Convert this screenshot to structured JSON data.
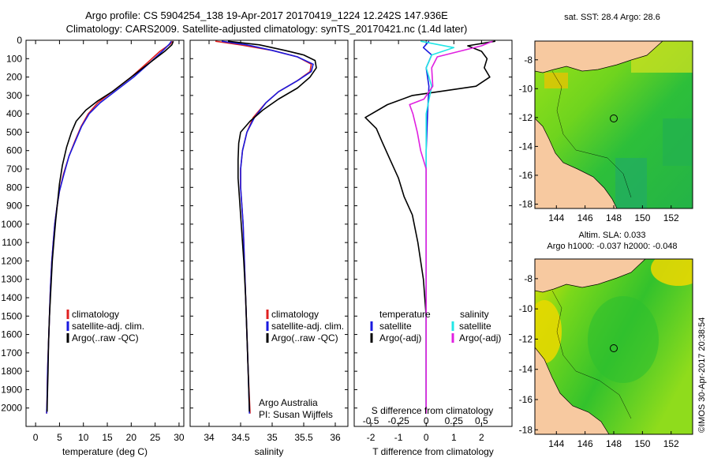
{
  "header": {
    "line1": "Argo profile: CS 5904254_138 19-Apr-2017 20170419_1224 12.242S 147.936E",
    "line2": "Climatology: CARS2009. Satellite-adjusted climatology: synTS_20170421.nc (1.4d later)"
  },
  "colors": {
    "climatology": "#e02020",
    "satellite": "#1a1adf",
    "argo": "#000000",
    "sat_salinity": "#22e6e6",
    "argo_salinity": "#e020e0",
    "land": "#f7c9a0"
  },
  "depth_axis": {
    "ylim": [
      0,
      2100
    ],
    "ticks": [
      "0",
      "100",
      "200",
      "300",
      "400",
      "500",
      "600",
      "700",
      "800",
      "900",
      "1000",
      "1100",
      "1200",
      "1300",
      "1400",
      "1500",
      "1600",
      "1700",
      "1800",
      "1900",
      "2000"
    ]
  },
  "chart_data": [
    {
      "id": "temperature",
      "type": "line",
      "xlabel": "temperature (deg C)",
      "xlim": [
        -2,
        31
      ],
      "xticks": [
        "0",
        "5",
        "10",
        "15",
        "20",
        "25",
        "30"
      ],
      "legend": [
        "climatology",
        "satellite-adj. clim.",
        "Argo(..raw -QC)"
      ],
      "series": [
        {
          "name": "climatology",
          "color": "#e02020",
          "points": [
            [
              28.6,
              5
            ],
            [
              28.2,
              20
            ],
            [
              26,
              60
            ],
            [
              23.5,
              120
            ],
            [
              20,
              200
            ],
            [
              16,
              280
            ],
            [
              13,
              340
            ],
            [
              11,
              400
            ],
            [
              9.5,
              470
            ],
            [
              8.2,
              550
            ],
            [
              7,
              630
            ],
            [
              5.8,
              730
            ],
            [
              5,
              820
            ],
            [
              4.5,
              900
            ],
            [
              4,
              1000
            ],
            [
              3.7,
              1100
            ],
            [
              3.4,
              1200
            ],
            [
              3.1,
              1350
            ],
            [
              2.9,
              1500
            ],
            [
              2.7,
              1650
            ],
            [
              2.5,
              1800
            ],
            [
              2.4,
              1950
            ],
            [
              2.3,
              2030
            ]
          ]
        },
        {
          "name": "satellite-adj. clim.",
          "color": "#1a1adf",
          "points": [
            [
              28.4,
              5
            ],
            [
              28,
              20
            ],
            [
              26.5,
              60
            ],
            [
              24,
              120
            ],
            [
              20.5,
              200
            ],
            [
              16.5,
              280
            ],
            [
              13.5,
              340
            ],
            [
              11.2,
              400
            ],
            [
              9.6,
              470
            ],
            [
              8.3,
              550
            ],
            [
              7,
              630
            ],
            [
              5.9,
              730
            ],
            [
              5,
              820
            ],
            [
              4.5,
              900
            ],
            [
              4,
              1000
            ],
            [
              3.7,
              1100
            ],
            [
              3.4,
              1200
            ],
            [
              3.1,
              1350
            ],
            [
              2.9,
              1500
            ],
            [
              2.7,
              1650
            ],
            [
              2.5,
              1800
            ],
            [
              2.4,
              1950
            ],
            [
              2.3,
              2030
            ]
          ]
        },
        {
          "name": "Argo(..raw -QC)",
          "color": "#000000",
          "points": [
            [
              28.8,
              5
            ],
            [
              28.5,
              25
            ],
            [
              27,
              60
            ],
            [
              24,
              120
            ],
            [
              20,
              200
            ],
            [
              16,
              280
            ],
            [
              13,
              330
            ],
            [
              10.5,
              380
            ],
            [
              8.5,
              440
            ],
            [
              7.5,
              500
            ],
            [
              6.5,
              580
            ],
            [
              5.6,
              680
            ],
            [
              5,
              780
            ],
            [
              4.6,
              880
            ],
            [
              4.2,
              980
            ],
            [
              3.8,
              1100
            ],
            [
              3.5,
              1200
            ],
            [
              3.2,
              1350
            ],
            [
              2.9,
              1500
            ],
            [
              2.7,
              1650
            ],
            [
              2.6,
              1800
            ],
            [
              2.45,
              1950
            ],
            [
              2.4,
              2020
            ]
          ]
        }
      ]
    },
    {
      "id": "salinity",
      "type": "line",
      "xlabel": "salinity",
      "xlim": [
        33.7,
        36.2
      ],
      "xticks": [
        "34",
        "34.5",
        "35",
        "35.5",
        "36"
      ],
      "legend": [
        "climatology",
        "satellite-adj. clim.",
        "Argo(..raw -QC)"
      ],
      "annotation": [
        "Argo Australia",
        "PI: Susan Wijffels"
      ],
      "series": [
        {
          "name": "climatology",
          "color": "#e02020",
          "points": [
            [
              34.1,
              5
            ],
            [
              34.5,
              25
            ],
            [
              35,
              55
            ],
            [
              35.4,
              90
            ],
            [
              35.62,
              130
            ],
            [
              35.6,
              170
            ],
            [
              35.4,
              220
            ],
            [
              35.1,
              280
            ],
            [
              34.9,
              340
            ],
            [
              34.7,
              420
            ],
            [
              34.6,
              500
            ],
            [
              34.53,
              600
            ],
            [
              34.5,
              700
            ],
            [
              34.5,
              800
            ],
            [
              34.52,
              900
            ],
            [
              34.54,
              1000
            ],
            [
              34.56,
              1200
            ],
            [
              34.58,
              1400
            ],
            [
              34.6,
              1600
            ],
            [
              34.62,
              1800
            ],
            [
              34.65,
              2030
            ]
          ]
        },
        {
          "name": "satellite-adj. clim.",
          "color": "#1a1adf",
          "points": [
            [
              34.2,
              5
            ],
            [
              34.6,
              25
            ],
            [
              35,
              55
            ],
            [
              35.4,
              90
            ],
            [
              35.65,
              130
            ],
            [
              35.62,
              170
            ],
            [
              35.4,
              220
            ],
            [
              35.1,
              280
            ],
            [
              34.9,
              340
            ],
            [
              34.72,
              420
            ],
            [
              34.6,
              500
            ],
            [
              34.53,
              600
            ],
            [
              34.5,
              700
            ],
            [
              34.5,
              800
            ],
            [
              34.52,
              900
            ],
            [
              34.54,
              1000
            ],
            [
              34.56,
              1200
            ],
            [
              34.58,
              1400
            ],
            [
              34.6,
              1600
            ],
            [
              34.62,
              1800
            ],
            [
              34.64,
              2030
            ]
          ]
        },
        {
          "name": "Argo(..raw -QC)",
          "color": "#000000",
          "points": [
            [
              34.3,
              5
            ],
            [
              34.8,
              25
            ],
            [
              35.2,
              55
            ],
            [
              35.5,
              80
            ],
            [
              35.68,
              110
            ],
            [
              35.7,
              150
            ],
            [
              35.6,
              200
            ],
            [
              35.4,
              260
            ],
            [
              35.1,
              320
            ],
            [
              34.85,
              380
            ],
            [
              34.65,
              440
            ],
            [
              34.5,
              500
            ],
            [
              34.47,
              560
            ],
            [
              34.46,
              650
            ],
            [
              34.46,
              750
            ],
            [
              34.48,
              850
            ],
            [
              34.5,
              950
            ],
            [
              34.52,
              1050
            ],
            [
              34.55,
              1200
            ],
            [
              34.58,
              1400
            ],
            [
              34.6,
              1600
            ],
            [
              34.62,
              1800
            ],
            [
              34.64,
              2020
            ]
          ]
        }
      ]
    },
    {
      "id": "difference",
      "type": "line",
      "xlabel": "T difference from climatology",
      "top_label": "S difference from climatology",
      "xlim": [
        -2.6,
        3.1
      ],
      "xticks": [
        "-2",
        "-1",
        "0",
        "1",
        "2"
      ],
      "xticks_s": [
        "-0.5",
        "-0.25",
        "0",
        "0.25",
        "0.5"
      ],
      "legend_headers": [
        "temperature",
        "salinity"
      ],
      "legend": [
        "satellite",
        "Argo(-adj)",
        "satellite",
        "Argo(-adj)"
      ],
      "series": [
        {
          "name": "T satellite",
          "color": "#1a1adf",
          "points": [
            [
              0.1,
              5
            ],
            [
              -0.1,
              40
            ],
            [
              0.2,
              80
            ],
            [
              0,
              150
            ],
            [
              0.1,
              250
            ],
            [
              0.05,
              400
            ],
            [
              0,
              600
            ],
            [
              0,
              800
            ],
            [
              0,
              1000
            ],
            [
              0,
              1500
            ],
            [
              0,
              2030
            ]
          ]
        },
        {
          "name": "T Argo(-adj)",
          "color": "#000000",
          "points": [
            [
              2.5,
              5
            ],
            [
              1.5,
              30
            ],
            [
              2,
              60
            ],
            [
              2.2,
              100
            ],
            [
              2.1,
              150
            ],
            [
              2.3,
              200
            ],
            [
              1.8,
              250
            ],
            [
              -0.5,
              300
            ],
            [
              -1.4,
              350
            ],
            [
              -2.2,
              420
            ],
            [
              -1.8,
              480
            ],
            [
              -1.6,
              550
            ],
            [
              -1.3,
              650
            ],
            [
              -1.0,
              750
            ],
            [
              -0.8,
              850
            ],
            [
              -0.5,
              950
            ],
            [
              -0.3,
              1100
            ],
            [
              -0.1,
              1300
            ],
            [
              0,
              1500
            ],
            [
              0,
              2030
            ]
          ]
        },
        {
          "name": "S satellite",
          "color": "#22e6e6",
          "points": [
            [
              -0.05,
              5
            ],
            [
              0.25,
              40
            ],
            [
              0.05,
              80
            ],
            [
              0,
              150
            ],
            [
              0.05,
              250
            ],
            [
              0,
              400
            ],
            [
              0,
              600
            ],
            [
              0,
              900
            ],
            [
              0,
              1200
            ],
            [
              0,
              1500
            ],
            [
              0,
              2030
            ]
          ]
        },
        {
          "name": "S Argo(-adj)",
          "color": "#e020e0",
          "points": [
            [
              0.6,
              5
            ],
            [
              0.5,
              30
            ],
            [
              0.3,
              60
            ],
            [
              0.1,
              90
            ],
            [
              0.05,
              150
            ],
            [
              0.06,
              250
            ],
            [
              -0.02,
              320
            ],
            [
              -0.15,
              350
            ],
            [
              -0.12,
              400
            ],
            [
              -0.08,
              500
            ],
            [
              -0.05,
              600
            ],
            [
              0,
              700
            ],
            [
              0,
              900
            ],
            [
              0,
              1100
            ],
            [
              0,
              1500
            ],
            [
              0,
              2030
            ]
          ]
        }
      ]
    },
    {
      "id": "sst_map",
      "type": "heatmap",
      "title": "sat. SST: 28.4 Argo: 28.6",
      "xticks": [
        "144",
        "146",
        "148",
        "150",
        "152"
      ],
      "yticks": [
        "-8",
        "-10",
        "-12",
        "-14",
        "-16",
        "-18"
      ],
      "marker_lon": 147.936,
      "marker_lat": -12.242
    },
    {
      "id": "sla_map",
      "type": "heatmap",
      "title_lines": [
        "Altim. SLA: 0.033",
        "Argo h1000: -0.037 h2000: -0.048"
      ],
      "xticks": [
        "144",
        "146",
        "148",
        "150",
        "152"
      ],
      "yticks": [
        "-8",
        "-10",
        "-12",
        "-14",
        "-16",
        "-18"
      ],
      "marker_lon": 147.936,
      "marker_lat": -12.242
    }
  ],
  "footer": {
    "stamp": "©IMOS 30-Apr-2017 20:38:54"
  }
}
